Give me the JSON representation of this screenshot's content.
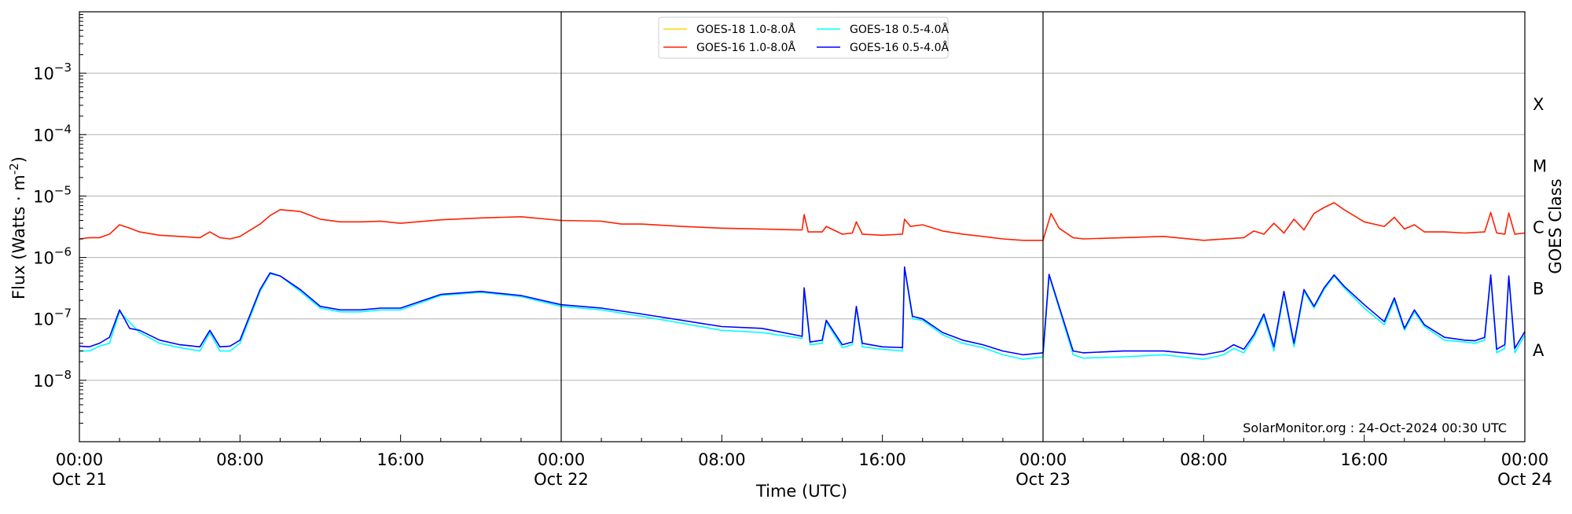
{
  "chart_data": {
    "type": "line",
    "xlabel": "Time (UTC)",
    "ylabel": "Flux (Watts · m",
    "ylabel_sup": "-2",
    "ylabel_close": ")",
    "right_label": "GOES Class",
    "y_scale": "log",
    "ylim": [
      1e-09,
      0.01
    ],
    "xlim_hours": [
      0,
      72
    ],
    "grid": "horizontal",
    "legend_position": "top-center",
    "annotation": "SolarMonitor.org : 24-Oct-2024 00:30 UTC",
    "x_ticks": [
      {
        "hour": 0,
        "time": "00:00",
        "date": "Oct 21"
      },
      {
        "hour": 8,
        "time": "08:00",
        "date": ""
      },
      {
        "hour": 16,
        "time": "16:00",
        "date": ""
      },
      {
        "hour": 24,
        "time": "00:00",
        "date": "Oct 22"
      },
      {
        "hour": 32,
        "time": "08:00",
        "date": ""
      },
      {
        "hour": 40,
        "time": "16:00",
        "date": ""
      },
      {
        "hour": 48,
        "time": "00:00",
        "date": "Oct 23"
      },
      {
        "hour": 56,
        "time": "08:00",
        "date": ""
      },
      {
        "hour": 64,
        "time": "16:00",
        "date": ""
      },
      {
        "hour": 72,
        "time": "00:00",
        "date": "Oct 24"
      }
    ],
    "day_lines_hours": [
      24,
      48
    ],
    "y_ticks": [
      {
        "value": 1e-08,
        "mantissa": "10",
        "exp": "−8"
      },
      {
        "value": 1e-07,
        "mantissa": "10",
        "exp": "−7"
      },
      {
        "value": 1e-06,
        "mantissa": "10",
        "exp": "−6"
      },
      {
        "value": 1e-05,
        "mantissa": "10",
        "exp": "−5"
      },
      {
        "value": 0.0001,
        "mantissa": "10",
        "exp": "−4"
      },
      {
        "value": 0.001,
        "mantissa": "10",
        "exp": "−3"
      }
    ],
    "goes_classes": [
      {
        "label": "A",
        "value": 3.16e-08
      },
      {
        "label": "B",
        "value": 3.16e-07
      },
      {
        "label": "C",
        "value": 3.16e-06
      },
      {
        "label": "M",
        "value": 3.16e-05
      },
      {
        "label": "X",
        "value": 0.000316
      }
    ],
    "series": [
      {
        "name": "GOES-18 1.0-8.0Å",
        "color": "#ffd700",
        "legend_col": 0,
        "legend_row": 0,
        "draw": false,
        "x": [],
        "y": []
      },
      {
        "name": "GOES-16 1.0-8.0Å",
        "color": "#ff2000",
        "legend_col": 0,
        "legend_row": 1,
        "draw": true,
        "x": [
          0,
          0.5,
          1,
          1.5,
          2,
          2.5,
          3,
          4,
          5,
          6,
          6.5,
          7,
          7.5,
          8,
          9,
          9.5,
          10,
          11,
          12,
          13,
          14,
          15,
          16,
          18,
          20,
          22,
          24,
          26,
          27,
          28,
          30,
          32,
          34,
          36,
          36.1,
          36.3,
          37,
          37.2,
          38,
          38.5,
          38.7,
          39,
          40,
          41,
          41.1,
          41.4,
          42,
          43,
          44,
          45,
          46,
          47,
          48,
          48.4,
          48.8,
          49.5,
          50,
          52,
          54,
          56,
          58,
          58.5,
          59,
          59.5,
          60,
          60.5,
          61,
          61.5,
          62,
          62.5,
          63,
          64,
          65,
          65.5,
          66,
          66.5,
          67,
          68,
          69,
          70,
          70.3,
          70.6,
          71,
          71.2,
          71.5,
          72
        ],
        "y": [
          2e-06,
          2.1e-06,
          2.1e-06,
          2.4e-06,
          3.4e-06,
          3e-06,
          2.6e-06,
          2.3e-06,
          2.2e-06,
          2.1e-06,
          2.6e-06,
          2.1e-06,
          2e-06,
          2.2e-06,
          3.5e-06,
          4.8e-06,
          6e-06,
          5.6e-06,
          4.2e-06,
          3.8e-06,
          3.8e-06,
          3.9e-06,
          3.6e-06,
          4.1e-06,
          4.4e-06,
          4.6e-06,
          4e-06,
          3.9e-06,
          3.5e-06,
          3.5e-06,
          3.2e-06,
          3e-06,
          2.9e-06,
          2.8e-06,
          5e-06,
          2.6e-06,
          2.6e-06,
          3.2e-06,
          2.4e-06,
          2.5e-06,
          3.8e-06,
          2.4e-06,
          2.3e-06,
          2.4e-06,
          4.2e-06,
          3.2e-06,
          3.4e-06,
          2.7e-06,
          2.4e-06,
          2.2e-06,
          2e-06,
          1.9e-06,
          1.9e-06,
          5.2e-06,
          3e-06,
          2.1e-06,
          2e-06,
          2.1e-06,
          2.2e-06,
          1.9e-06,
          2.1e-06,
          2.7e-06,
          2.4e-06,
          3.6e-06,
          2.5e-06,
          4.2e-06,
          2.8e-06,
          5.2e-06,
          6.5e-06,
          7.8e-06,
          6e-06,
          3.8e-06,
          3.2e-06,
          4.5e-06,
          2.9e-06,
          3.4e-06,
          2.6e-06,
          2.6e-06,
          2.5e-06,
          2.6e-06,
          5.4e-06,
          2.5e-06,
          2.4e-06,
          5.3e-06,
          2.4e-06,
          2.5e-06
        ]
      },
      {
        "name": "GOES-18 0.5-4.0Å",
        "color": "#00ffff",
        "legend_col": 1,
        "legend_row": 0,
        "draw": true,
        "x": [
          0,
          0.5,
          1,
          1.5,
          2,
          3,
          4,
          5,
          6,
          6.5,
          7,
          7.5,
          8,
          9,
          9.5,
          10,
          11,
          12,
          13,
          14,
          15,
          16,
          18,
          20,
          22,
          24,
          26,
          28,
          30,
          32,
          34,
          36,
          36.1,
          36.4,
          37,
          37.2,
          38,
          38.5,
          38.7,
          39,
          40,
          41,
          41.1,
          41.5,
          42,
          43,
          44,
          45,
          46,
          47,
          48,
          48.3,
          48.8,
          49.5,
          50,
          52,
          54,
          56,
          57,
          57.5,
          58,
          58.5,
          59,
          59.5,
          60,
          60.5,
          61,
          61.5,
          62,
          62.5,
          63,
          64,
          65,
          65.5,
          66,
          66.5,
          67,
          68,
          69,
          69.5,
          70,
          70.3,
          70.6,
          71,
          71.2,
          71.5,
          72
        ],
        "y": [
          3e-08,
          3e-08,
          3.6e-08,
          4e-08,
          1.3e-07,
          6e-08,
          4e-08,
          3.4e-08,
          3e-08,
          6e-08,
          3e-08,
          3e-08,
          4e-08,
          2.8e-07,
          5.4e-07,
          5e-07,
          2.8e-07,
          1.5e-07,
          1.3e-07,
          1.3e-07,
          1.4e-07,
          1.4e-07,
          2.4e-07,
          2.7e-07,
          2.3e-07,
          1.6e-07,
          1.4e-07,
          1.1e-07,
          8.5e-08,
          6.5e-08,
          6e-08,
          4.8e-08,
          3e-07,
          3.8e-08,
          4e-08,
          9e-08,
          3.4e-08,
          3.8e-08,
          1.5e-07,
          3.5e-08,
          3.2e-08,
          3e-08,
          6.8e-07,
          1e-07,
          9.5e-08,
          5.5e-08,
          4e-08,
          3.4e-08,
          2.6e-08,
          2.2e-08,
          2.4e-08,
          5e-07,
          1.5e-07,
          2.6e-08,
          2.3e-08,
          2.4e-08,
          2.6e-08,
          2.2e-08,
          2.6e-08,
          3.3e-08,
          2.8e-08,
          5e-08,
          1.1e-07,
          3e-08,
          2.6e-07,
          3.5e-08,
          2.8e-07,
          1.5e-07,
          3e-07,
          5e-07,
          3.2e-07,
          1.5e-07,
          8e-08,
          2e-07,
          6.5e-08,
          1.3e-07,
          7.5e-08,
          4.5e-08,
          4.2e-08,
          4e-08,
          4.5e-08,
          5e-07,
          2.8e-08,
          3.3e-08,
          4.8e-07,
          2.8e-08,
          5.5e-08
        ]
      },
      {
        "name": "GOES-16 0.5-4.0Å",
        "color": "#0000ff",
        "legend_col": 1,
        "legend_row": 1,
        "draw": true,
        "x": [
          0,
          0.5,
          1,
          1.5,
          2,
          2.5,
          3,
          4,
          5,
          6,
          6.5,
          7,
          7.5,
          8,
          9,
          9.5,
          10,
          11,
          12,
          13,
          14,
          15,
          16,
          18,
          20,
          22,
          24,
          26,
          28,
          30,
          32,
          34,
          36,
          36.1,
          36.4,
          37,
          37.2,
          38,
          38.5,
          38.7,
          39,
          40,
          41,
          41.1,
          41.5,
          42,
          43,
          44,
          45,
          46,
          47,
          48,
          48.3,
          48.8,
          49.5,
          50,
          52,
          54,
          56,
          57,
          57.5,
          58,
          58.5,
          59,
          59.5,
          60,
          60.5,
          61,
          61.5,
          62,
          62.5,
          63,
          64,
          65,
          65.5,
          66,
          66.5,
          67,
          68,
          69,
          69.5,
          70,
          70.3,
          70.6,
          71,
          71.2,
          71.5,
          72
        ],
        "y": [
          3.6e-08,
          3.5e-08,
          4e-08,
          5e-08,
          1.4e-07,
          7e-08,
          6.5e-08,
          4.5e-08,
          3.8e-08,
          3.5e-08,
          6.5e-08,
          3.5e-08,
          3.6e-08,
          4.5e-08,
          3e-07,
          5.6e-07,
          5e-07,
          3e-07,
          1.6e-07,
          1.4e-07,
          1.4e-07,
          1.5e-07,
          1.5e-07,
          2.5e-07,
          2.8e-07,
          2.4e-07,
          1.7e-07,
          1.5e-07,
          1.2e-07,
          9.5e-08,
          7.5e-08,
          7e-08,
          5.2e-08,
          3.2e-07,
          4.2e-08,
          4.5e-08,
          9.5e-08,
          3.8e-08,
          4.2e-08,
          1.6e-07,
          4e-08,
          3.5e-08,
          3.4e-08,
          7e-07,
          1.1e-07,
          1e-07,
          6e-08,
          4.5e-08,
          3.8e-08,
          3e-08,
          2.6e-08,
          2.8e-08,
          5.3e-07,
          1.6e-07,
          3e-08,
          2.8e-08,
          3e-08,
          3e-08,
          2.6e-08,
          3e-08,
          3.8e-08,
          3.2e-08,
          5.5e-08,
          1.2e-07,
          3.5e-08,
          2.8e-07,
          4e-08,
          3e-07,
          1.6e-07,
          3.2e-07,
          5.2e-07,
          3.4e-07,
          1.7e-07,
          9e-08,
          2.2e-07,
          7e-08,
          1.4e-07,
          8e-08,
          5e-08,
          4.5e-08,
          4.4e-08,
          5e-08,
          5.2e-07,
          3.2e-08,
          3.8e-08,
          5e-07,
          3.3e-08,
          6.2e-08
        ]
      }
    ]
  }
}
